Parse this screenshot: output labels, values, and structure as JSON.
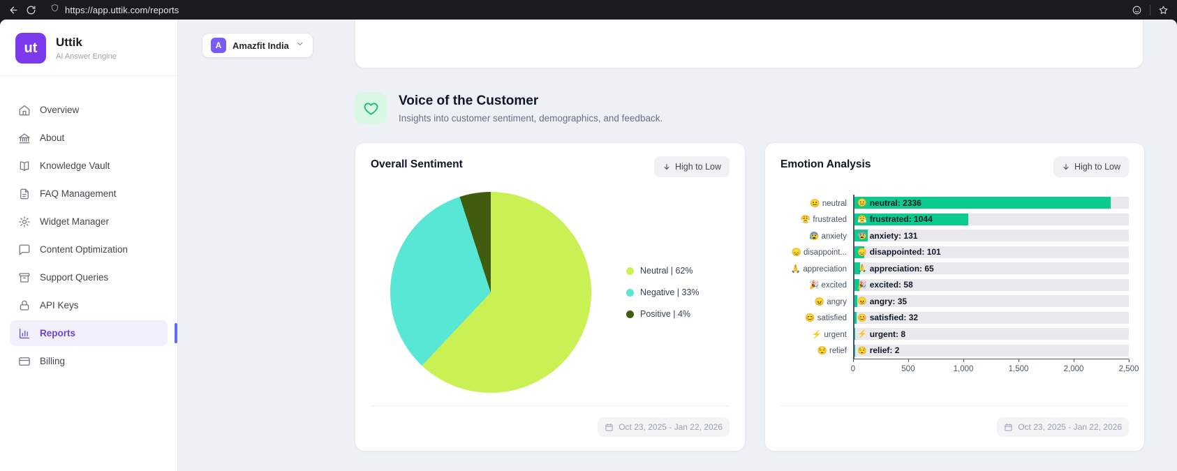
{
  "browser": {
    "url": "https://app.uttik.com/reports"
  },
  "sidebar": {
    "logo_text": "ut",
    "app_name": "Uttik",
    "app_subtitle": "AI Answer Engine",
    "items": [
      {
        "label": "Overview",
        "icon": "home",
        "active": false
      },
      {
        "label": "About",
        "icon": "building",
        "active": false
      },
      {
        "label": "Knowledge Vault",
        "icon": "book",
        "active": false
      },
      {
        "label": "FAQ Management",
        "icon": "document",
        "active": false
      },
      {
        "label": "Widget Manager",
        "icon": "settings",
        "active": false
      },
      {
        "label": "Content Optimization",
        "icon": "chat",
        "active": false
      },
      {
        "label": "Support Queries",
        "icon": "archive",
        "active": false
      },
      {
        "label": "API Keys",
        "icon": "lock",
        "active": false
      },
      {
        "label": "Reports",
        "icon": "bar-chart",
        "active": true
      },
      {
        "label": "Billing",
        "icon": "credit-card",
        "active": false
      }
    ]
  },
  "workspace": {
    "name": "Amazfit India",
    "initial": "A"
  },
  "section": {
    "title": "Voice of the Customer",
    "subtitle": "Insights into customer sentiment, demographics, and feedback."
  },
  "sentiment_card": {
    "title": "Overall Sentiment",
    "sort_label": "High to Low",
    "date_range": "Oct 23, 2025 - Jan 22, 2026"
  },
  "emotion_card": {
    "title": "Emotion Analysis",
    "sort_label": "High to Low",
    "date_range": "Oct 23, 2025 - Jan 22, 2026"
  },
  "chart_data": [
    {
      "type": "pie",
      "title": "Overall Sentiment",
      "labels": [
        "Neutral",
        "Negative",
        "Positive"
      ],
      "values": [
        62,
        33,
        4
      ],
      "unit": "percent",
      "colors": [
        "#c9f154",
        "#57e7d4",
        "#3f5c0f"
      ],
      "legend": [
        "Neutral | 62%",
        "Negative | 33%",
        "Positive | 4%"
      ],
      "legend_position": "right"
    },
    {
      "type": "bar",
      "orientation": "horizontal",
      "title": "Emotion Analysis",
      "xlim": [
        0,
        2500
      ],
      "x_ticks": [
        "0",
        "500",
        "1,000",
        "1,500",
        "2,000",
        "2,500"
      ],
      "bar_color": "#0aca8d",
      "track_color": "#e9e9ed",
      "rows": [
        {
          "emoji": "😐",
          "axis_label": "neutral",
          "bar_label": "neutral: 2336",
          "value": 2336
        },
        {
          "emoji": "😤",
          "axis_label": "frustrated",
          "bar_label": "frustrated: 1044",
          "value": 1044
        },
        {
          "emoji": "😰",
          "axis_label": "anxiety",
          "bar_label": "anxiety: 131",
          "value": 131
        },
        {
          "emoji": "😞",
          "axis_label": "disappoint...",
          "bar_label": "disappointed: 101",
          "value": 101
        },
        {
          "emoji": "🙏",
          "axis_label": "appreciation",
          "bar_label": "appreciation: 65",
          "value": 65
        },
        {
          "emoji": "🎉",
          "axis_label": "excited",
          "bar_label": "excited: 58",
          "value": 58
        },
        {
          "emoji": "😠",
          "axis_label": "angry",
          "bar_label": "angry: 35",
          "value": 35
        },
        {
          "emoji": "😊",
          "axis_label": "satisfied",
          "bar_label": "satisfied: 32",
          "value": 32
        },
        {
          "emoji": "⚡",
          "axis_label": "urgent",
          "bar_label": "urgent: 8",
          "value": 8
        },
        {
          "emoji": "😌",
          "axis_label": "relief",
          "bar_label": "relief: 2",
          "value": 2
        }
      ]
    }
  ]
}
